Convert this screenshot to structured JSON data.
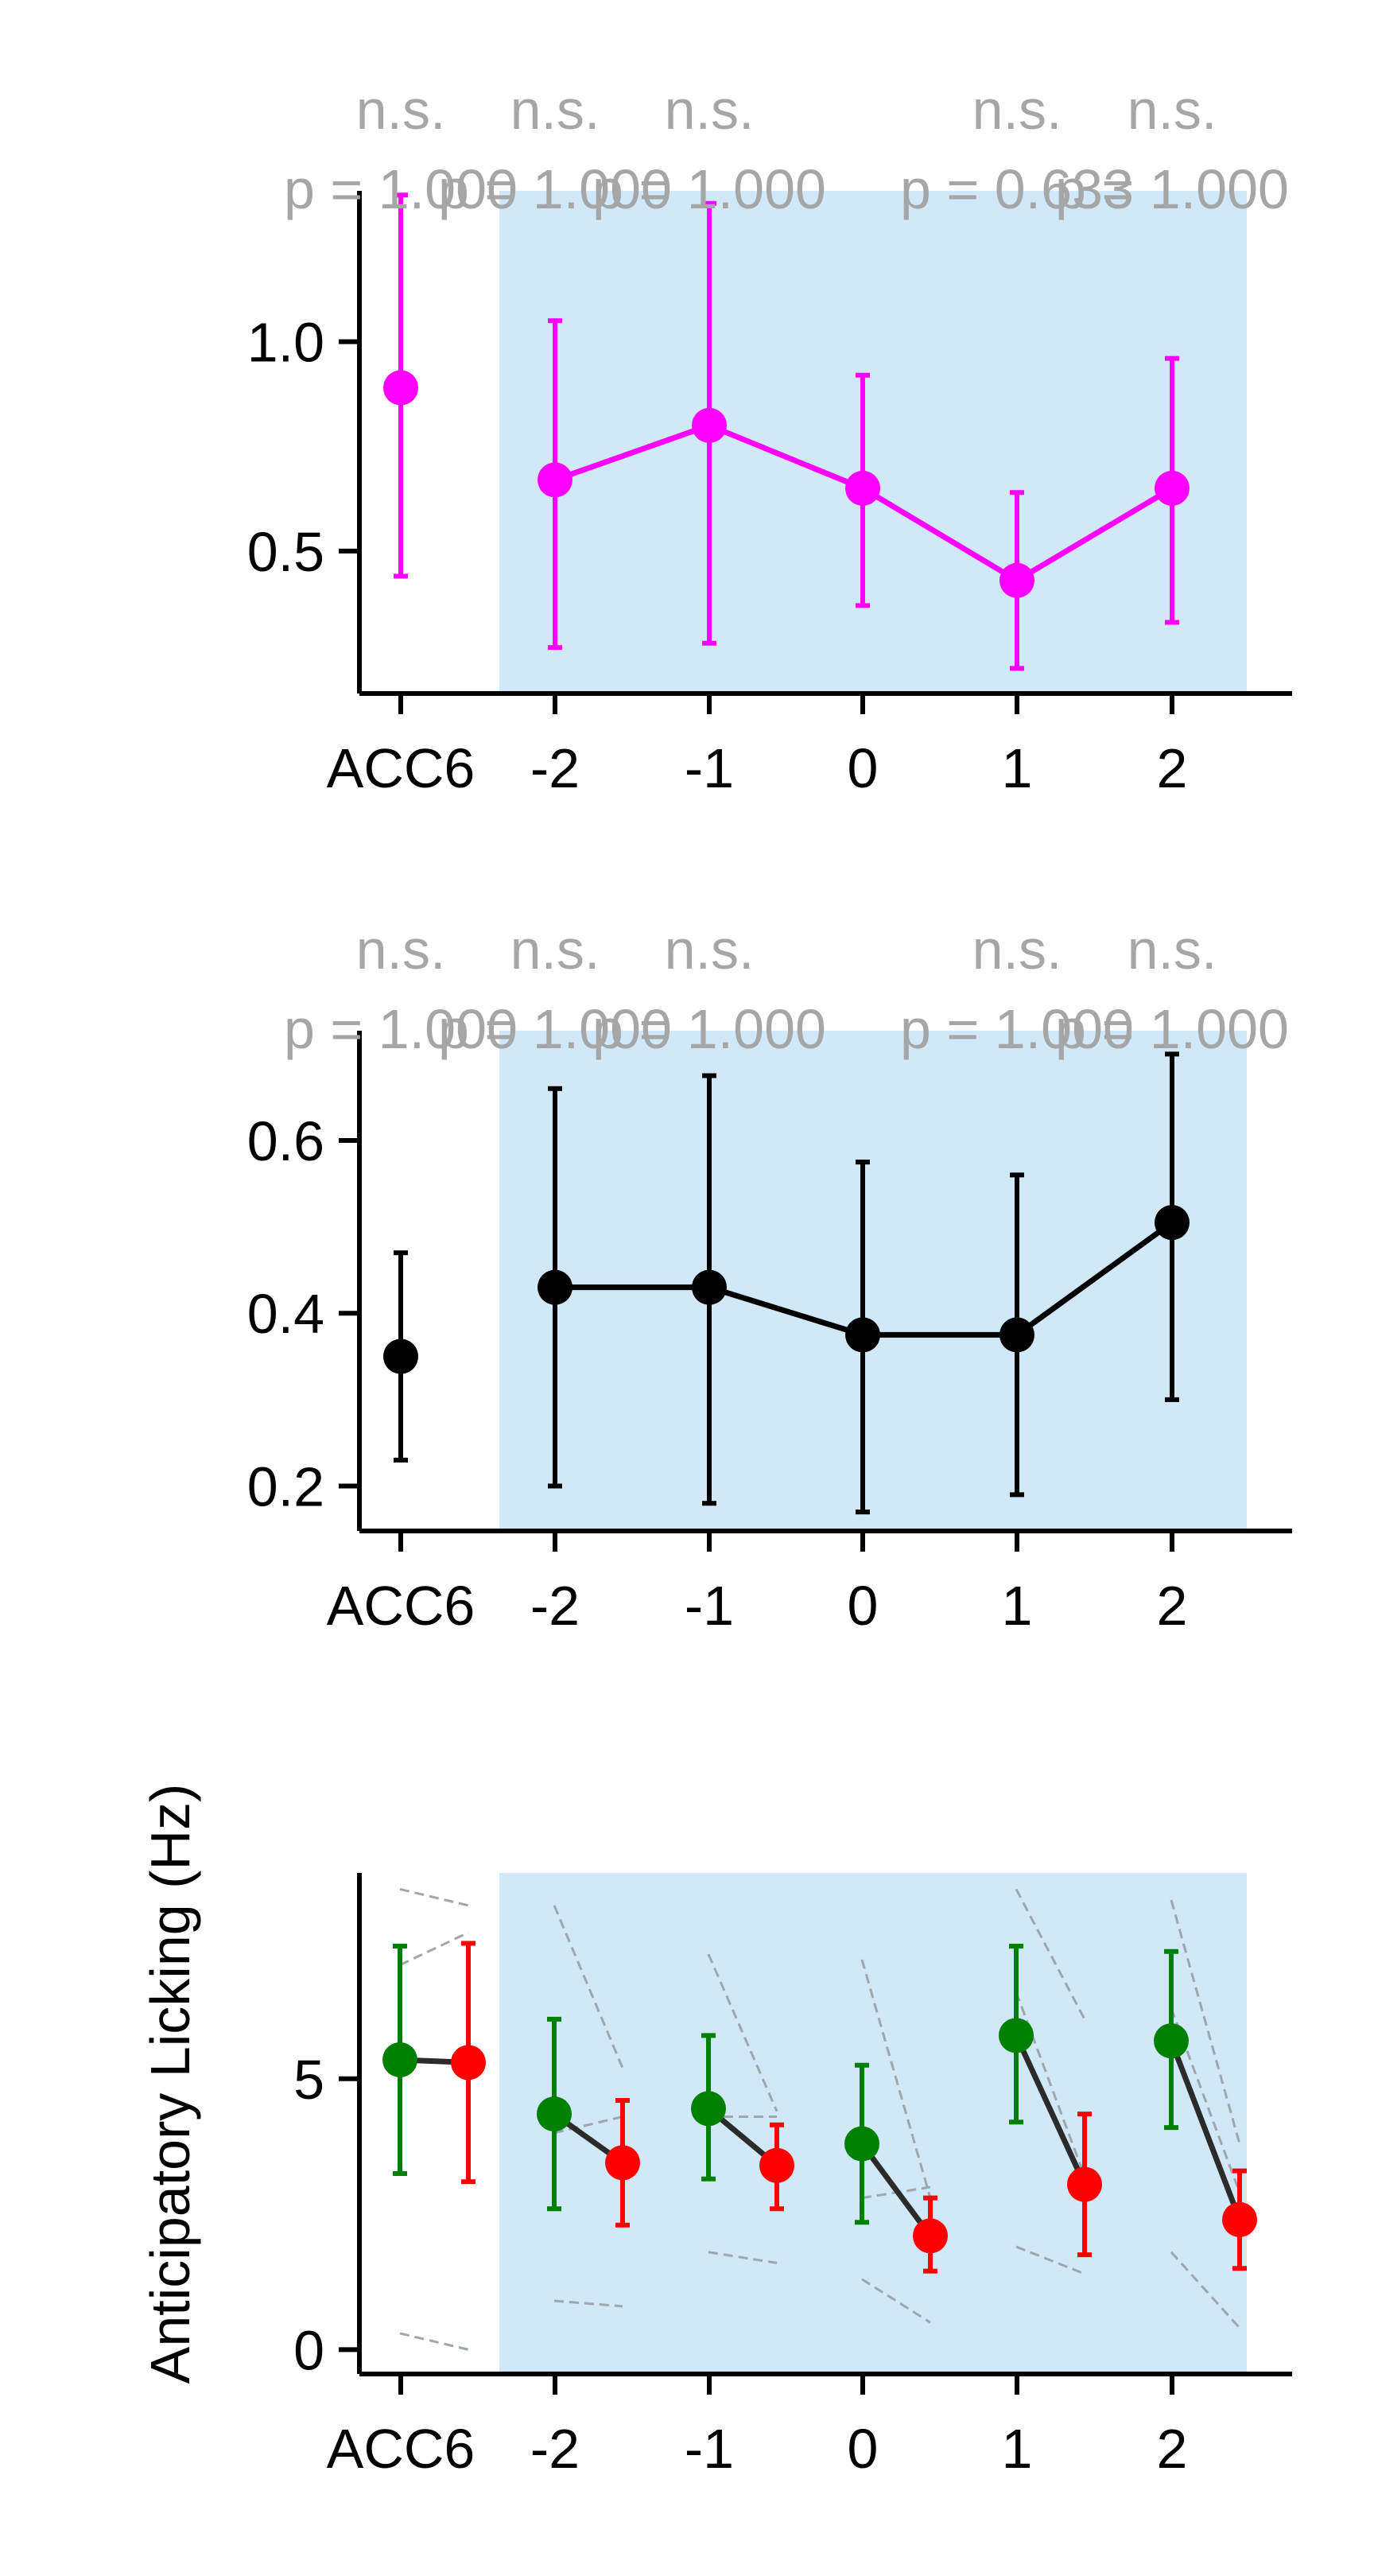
{
  "chart_data": [
    {
      "type": "line",
      "panel": "top",
      "x_categories": [
        "ACC6",
        "-2",
        "-1",
        "0",
        "1",
        "2"
      ],
      "ylim": [
        0.16,
        1.36
      ],
      "yticks": [
        0.5,
        1.0
      ],
      "ytick_labels": [
        "0.5",
        "1.0"
      ],
      "ylabel": "",
      "shaded_region": {
        "from_category": "-2",
        "to_category": "2",
        "color": "#d0e8f8"
      },
      "series": [
        {
          "color": "#ff00ff",
          "x": [
            "ACC6",
            "-2",
            "-1",
            "0",
            "1",
            "2"
          ],
          "y": [
            0.89,
            0.67,
            0.8,
            0.65,
            0.43,
            0.65
          ],
          "yerr_low": [
            0.44,
            0.27,
            0.28,
            0.37,
            0.22,
            0.33
          ],
          "yerr_high": [
            1.35,
            1.05,
            1.33,
            0.92,
            0.64,
            0.96
          ],
          "connected_from": "-2"
        }
      ],
      "annotations": [
        {
          "x": "ACC6",
          "sig": "n.s.",
          "p": "p = 1.000"
        },
        {
          "x": "-2",
          "sig": "n.s.",
          "p": "p = 1.000"
        },
        {
          "x": "-1",
          "sig": "n.s.",
          "p": "p = 1.000"
        },
        {
          "x": "1",
          "sig": "n.s.",
          "p": "p = 0.633"
        },
        {
          "x": "2",
          "sig": "n.s.",
          "p": "p = 1.000"
        }
      ]
    },
    {
      "type": "line",
      "panel": "middle",
      "x_categories": [
        "ACC6",
        "-2",
        "-1",
        "0",
        "1",
        "2"
      ],
      "ylim": [
        0.148,
        0.727
      ],
      "yticks": [
        0.2,
        0.4,
        0.6
      ],
      "ytick_labels": [
        "0.2",
        "0.4",
        "0.6"
      ],
      "ylabel": "",
      "shaded_region": {
        "from_category": "-2",
        "to_category": "2",
        "color": "#d0e8f8"
      },
      "series": [
        {
          "color": "#000000",
          "x": [
            "ACC6",
            "-2",
            "-1",
            "0",
            "1",
            "2"
          ],
          "y": [
            0.35,
            0.43,
            0.43,
            0.375,
            0.375,
            0.505
          ],
          "yerr_low": [
            0.23,
            0.2,
            0.18,
            0.17,
            0.19,
            0.3
          ],
          "yerr_high": [
            0.47,
            0.66,
            0.675,
            0.575,
            0.56,
            0.7
          ],
          "connected_from": "-2"
        }
      ],
      "annotations": [
        {
          "x": "ACC6",
          "sig": "n.s.",
          "p": "p = 1.000"
        },
        {
          "x": "-2",
          "sig": "n.s.",
          "p": "p = 1.000"
        },
        {
          "x": "-1",
          "sig": "n.s.",
          "p": "p = 1.000"
        },
        {
          "x": "1",
          "sig": "n.s.",
          "p": "p = 1.000"
        },
        {
          "x": "2",
          "sig": "n.s.",
          "p": "p = 1.000"
        }
      ]
    },
    {
      "type": "scatter",
      "panel": "bottom",
      "x_categories": [
        "ACC6",
        "-2",
        "-1",
        "0",
        "1",
        "2"
      ],
      "ylim": [
        -0.45,
        8.8
      ],
      "yticks": [
        0,
        5
      ],
      "ytick_labels": [
        "0",
        "5"
      ],
      "ylabel": "Anticipatory Licking (Hz)",
      "shaded_region": {
        "from_category": "-2",
        "to_category": "2",
        "color": "#d0e8f8"
      },
      "pairs": [
        {
          "x": "ACC6",
          "green": 5.35,
          "green_low": 3.25,
          "green_high": 7.45,
          "red": 5.3,
          "red_low": 3.1,
          "red_high": 7.5
        },
        {
          "x": "-2",
          "green": 4.35,
          "green_low": 2.6,
          "green_high": 6.1,
          "red": 3.45,
          "red_low": 2.3,
          "red_high": 4.6
        },
        {
          "x": "-1",
          "green": 4.45,
          "green_low": 3.15,
          "green_high": 5.8,
          "red": 3.4,
          "red_low": 2.6,
          "red_high": 4.15
        },
        {
          "x": "0",
          "green": 3.8,
          "green_low": 2.35,
          "green_high": 5.25,
          "red": 2.1,
          "red_low": 1.45,
          "red_high": 2.8
        },
        {
          "x": "1",
          "green": 5.8,
          "green_low": 4.2,
          "green_high": 7.45,
          "red": 3.05,
          "red_low": 1.75,
          "red_high": 4.35
        },
        {
          "x": "2",
          "green": 5.7,
          "green_low": 4.1,
          "green_high": 7.35,
          "red": 2.4,
          "red_low": 1.5,
          "red_high": 3.3
        }
      ],
      "individual_lines": [
        {
          "x": "ACC6",
          "pairs": [
            [
              8.5,
              8.2
            ],
            [
              7.1,
              7.7
            ],
            [
              0.3,
              0.0
            ]
          ]
        },
        {
          "x": "-2",
          "pairs": [
            [
              8.2,
              5.2
            ],
            [
              4.0,
              4.3
            ],
            [
              0.9,
              0.8
            ]
          ]
        },
        {
          "x": "-1",
          "pairs": [
            [
              7.3,
              4.4
            ],
            [
              4.3,
              4.3
            ],
            [
              1.8,
              1.6
            ]
          ]
        },
        {
          "x": "0",
          "pairs": [
            [
              7.2,
              2.8
            ],
            [
              2.8,
              3.0
            ],
            [
              1.3,
              0.5
            ]
          ]
        },
        {
          "x": "1",
          "pairs": [
            [
              8.5,
              6.1
            ],
            [
              6.6,
              3.2
            ],
            [
              1.9,
              1.4
            ]
          ]
        },
        {
          "x": "2",
          "pairs": [
            [
              8.3,
              3.8
            ],
            [
              6.3,
              2.9
            ],
            [
              1.8,
              0.4
            ]
          ]
        }
      ],
      "colors": {
        "green": "#008000",
        "red": "#ff0000",
        "connector": "#2b2b2b",
        "individual": "#9ea7ad"
      }
    }
  ]
}
